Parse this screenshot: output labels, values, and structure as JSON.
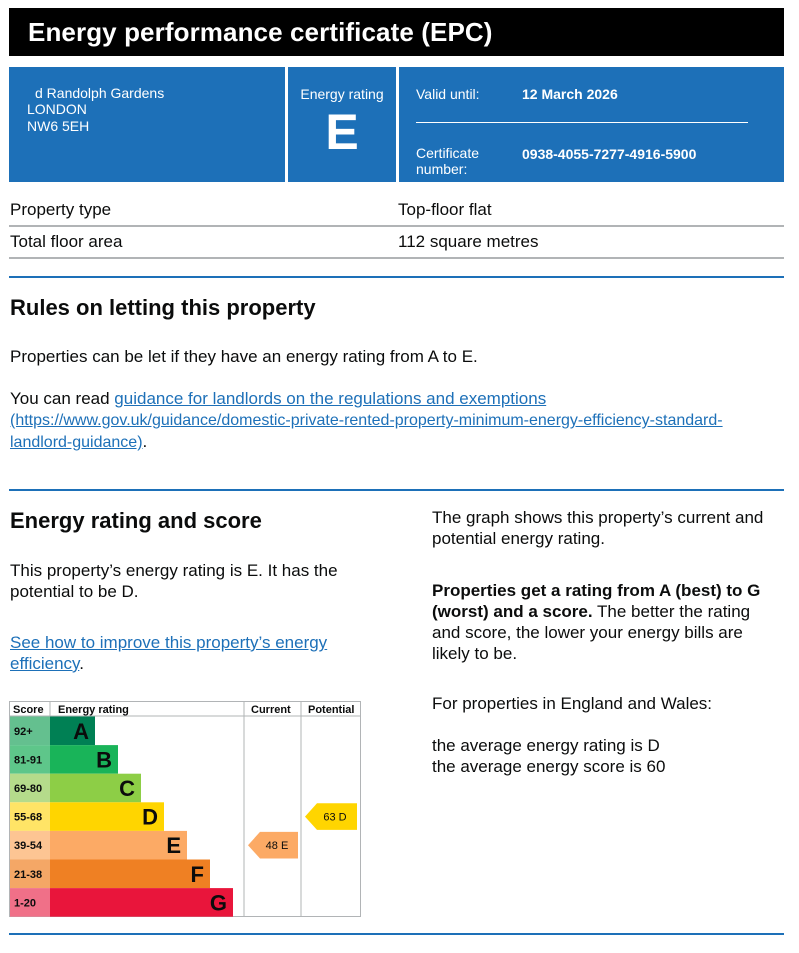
{
  "header": {
    "title": "Energy performance certificate (EPC)"
  },
  "address": {
    "line1": "d Randolph Gardens",
    "line2": "LONDON",
    "line3": "NW6 5EH"
  },
  "rating_box": {
    "label": "Energy rating",
    "value": "E"
  },
  "validity": {
    "valid_label": "Valid until:",
    "valid_value": "12 March 2026",
    "cert_label_1": "Certificate",
    "cert_label_2": "number:",
    "cert_value": "0938-4055-7277-4916-5900"
  },
  "property": [
    {
      "key": "Property type",
      "value": "Top-floor flat"
    },
    {
      "key": "Total floor area",
      "value": "112 square metres"
    }
  ],
  "rules": {
    "heading": "Rules on letting this property",
    "p1": "Properties can be let if they have an energy rating from A to E.",
    "p2_prefix": "You can read ",
    "link_line1": "guidance for landlords on the regulations and exemptions",
    "link_line2": "(https://www.gov.uk/guidance/domestic-private-rented-property-minimum-energy-efficiency-standard-",
    "link_line3": "landlord-guidance)",
    "p2_suffix": "."
  },
  "score": {
    "heading": "Energy rating and score",
    "p1_line1": "This property’s energy rating is E. It has the",
    "p1_line2": "potential to be D.",
    "link_line1": "See how to improve this property’s energy",
    "link_line2": "efficiency",
    "link_suffix": "."
  },
  "right": {
    "p1_line1": "The graph shows this property’s current and",
    "p1_line2": "potential energy rating.",
    "p2_bold_line1": "Properties get a rating from A (best) to G",
    "p2_bold_line2": "(worst) and a score.",
    "p2_rest_line2": " The better the rating",
    "p2_line3": "and score, the lower your energy bills are",
    "p2_line4": "likely to be.",
    "p3": "For properties in England and Wales:",
    "p4_line1": "the average energy rating is D",
    "p4_line2": "the average energy score is 60"
  },
  "chart_data": {
    "type": "bar",
    "headers": {
      "score": "Score",
      "rating": "Energy rating",
      "current": "Current",
      "potential": "Potential"
    },
    "bands": [
      {
        "letter": "A",
        "range": "92+",
        "color": "#008054",
        "score_color": "#64c08f"
      },
      {
        "letter": "B",
        "range": "81-91",
        "color": "#19b459",
        "score_color": "#5ec68a"
      },
      {
        "letter": "C",
        "range": "69-80",
        "color": "#8dce46",
        "score_color": "#b5db8b"
      },
      {
        "letter": "D",
        "range": "55-68",
        "color": "#ffd500",
        "score_color": "#ffe466"
      },
      {
        "letter": "E",
        "range": "39-54",
        "color": "#fcaa65",
        "score_color": "#fdc593"
      },
      {
        "letter": "F",
        "range": "21-38",
        "color": "#ef8023",
        "score_color": "#f4a766"
      },
      {
        "letter": "G",
        "range": "1-20",
        "color": "#e9153b",
        "score_color": "#f07088"
      }
    ],
    "current": {
      "score": 48,
      "letter": "E",
      "label": "48  E",
      "color": "#fcaa65"
    },
    "potential": {
      "score": 63,
      "letter": "D",
      "label": "63  D",
      "color": "#ffd500"
    }
  }
}
